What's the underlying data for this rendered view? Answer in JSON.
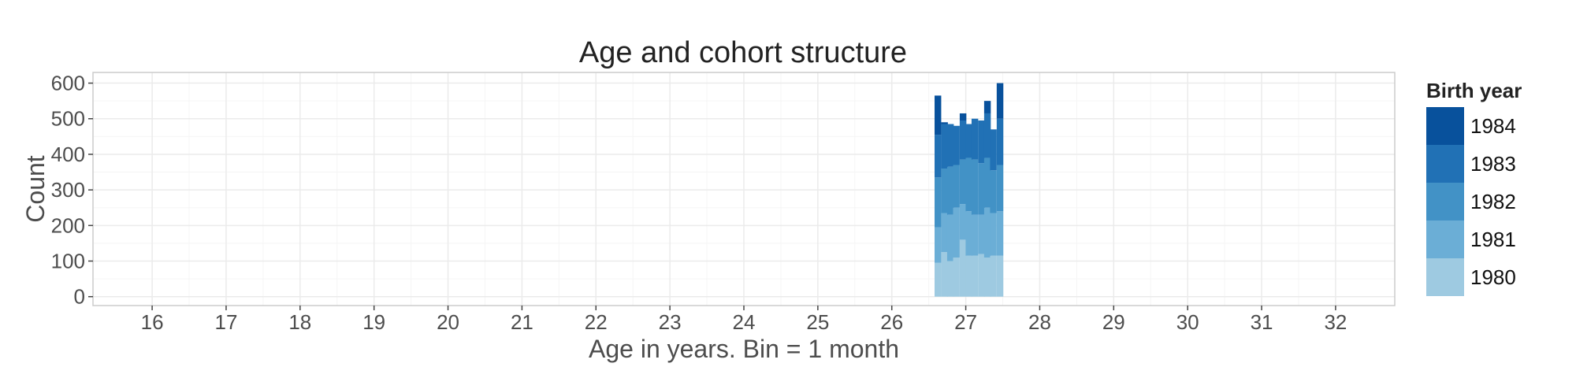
{
  "chart_data": {
    "type": "bar",
    "stacked": true,
    "title": "Age and cohort structure",
    "xlabel": "Age in years. Bin = 1 month",
    "ylabel": "Count",
    "xlim": [
      15.2,
      32.8
    ],
    "ylim": [
      -25,
      630
    ],
    "x_ticks": [
      16,
      17,
      18,
      19,
      20,
      21,
      22,
      23,
      24,
      25,
      26,
      27,
      28,
      29,
      30,
      31,
      32
    ],
    "y_ticks": [
      0,
      100,
      200,
      300,
      400,
      500,
      600
    ],
    "bin_width": 0.0833,
    "x": [
      26.62,
      26.71,
      26.79,
      26.87,
      26.96,
      27.04,
      27.12,
      27.21,
      27.29,
      27.37,
      27.46
    ],
    "series": [
      {
        "name": "1980",
        "color": "#9ecae1",
        "values": [
          95,
          125,
          100,
          110,
          160,
          115,
          115,
          120,
          110,
          115,
          115
        ]
      },
      {
        "name": "1981",
        "color": "#6baed6",
        "values": [
          100,
          110,
          130,
          140,
          100,
          125,
          115,
          110,
          140,
          120,
          125
        ]
      },
      {
        "name": "1982",
        "color": "#4292c6",
        "values": [
          140,
          125,
          135,
          120,
          125,
          150,
          155,
          145,
          140,
          120,
          130
        ]
      },
      {
        "name": "1983",
        "color": "#2171b5",
        "values": [
          120,
          125,
          120,
          110,
          110,
          95,
          115,
          120,
          125,
          115,
          130
        ]
      },
      {
        "name": "1984",
        "color": "#08519c",
        "values": [
          110,
          5,
          0,
          0,
          20,
          0,
          0,
          0,
          35,
          0,
          100
        ]
      }
    ],
    "legend": {
      "title": "Birth year",
      "position": "right",
      "order": [
        "1984",
        "1983",
        "1982",
        "1981",
        "1980"
      ]
    },
    "grid": true,
    "colors": {
      "panel_border": "#cccccc",
      "grid_major": "#ebebeb",
      "grid_minor": "#f5f5f5"
    }
  }
}
